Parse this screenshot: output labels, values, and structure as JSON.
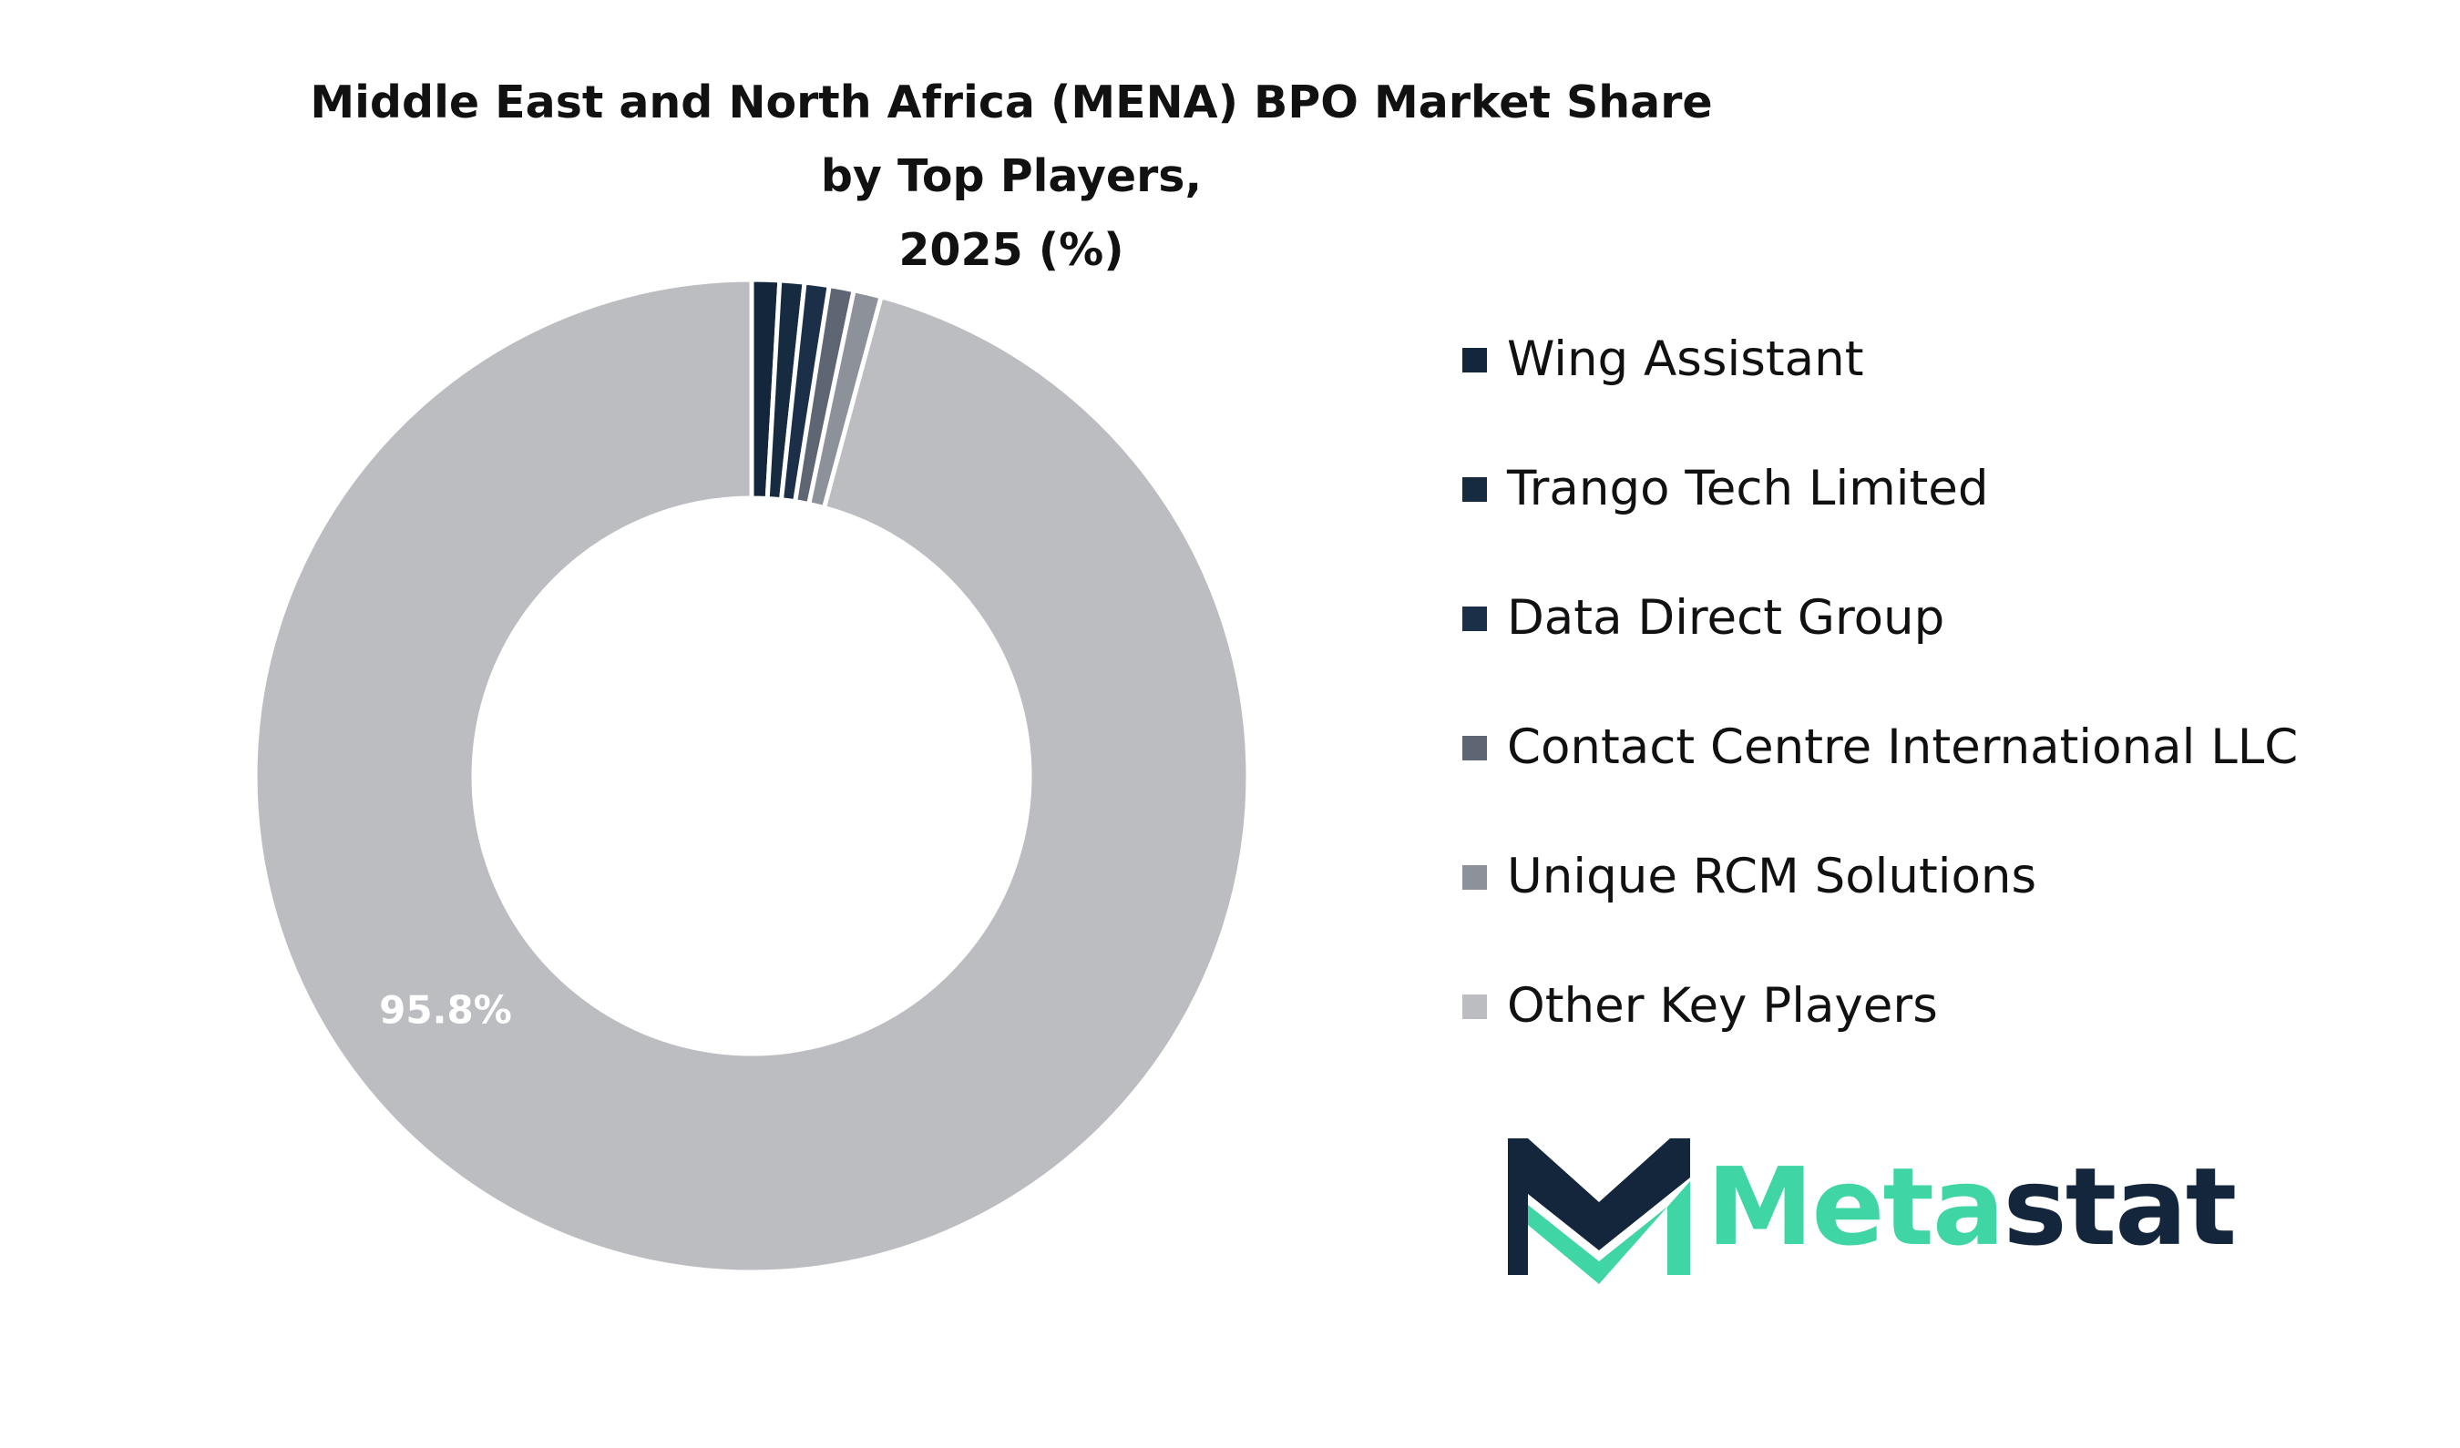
{
  "chart_data": {
    "type": "pie",
    "style": "donut",
    "title_lines": [
      "Middle East and North Africa (MENA) BPO Market Share by Top Players,",
      "2025 (%)"
    ],
    "unit": "%",
    "slices": [
      {
        "label": "Wing Assistant",
        "value": 0.9,
        "color": "#13263b"
      },
      {
        "label": "Trango Tech Limited",
        "value": 0.8,
        "color": "#172b40"
      },
      {
        "label": "Data Direct Group",
        "value": 0.8,
        "color": "#1b3048"
      },
      {
        "label": "Contact Centre International LLC",
        "value": 0.8,
        "color": "#5d6672"
      },
      {
        "label": "Unique RCM Solutions",
        "value": 0.9,
        "color": "#8d9199"
      },
      {
        "label": "Other Key Players",
        "value": 95.8,
        "color": "#bcbdc0"
      }
    ],
    "data_labels": [
      {
        "slice": "Other Key Players",
        "text": "95.8%"
      }
    ],
    "legend_position": "right"
  },
  "brand": {
    "word_part1": "Meta",
    "word_part2": "stat",
    "color_dark": "#13263b",
    "color_accent": "#3fd5a4"
  }
}
